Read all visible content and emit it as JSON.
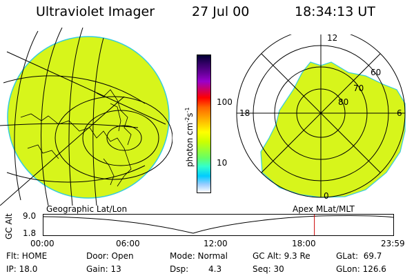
{
  "header": {
    "instrument": "Ultraviolet Imager",
    "date": "27 Jul 00",
    "time": "18:34:13 UT"
  },
  "colorbar": {
    "unit_main": "photon cm",
    "unit_sup1": "-2",
    "unit_s": "s",
    "unit_sup2": "-1",
    "ticks": [
      "100",
      "10"
    ],
    "colors": [
      "#000033",
      "#330066",
      "#660099",
      "#9900cc",
      "#cc0066",
      "#ff0000",
      "#ff6600",
      "#ff9900",
      "#ffcc00",
      "#ffff00",
      "#ccff00",
      "#99ff33",
      "#66ff66",
      "#33ffcc",
      "#00ccff",
      "#99ccff",
      "#ffffff"
    ]
  },
  "left_panel": {
    "caption": "Geographic Lat/Lon"
  },
  "right_panel": {
    "caption": "Apex MLat/MLT",
    "mlt_labels": {
      "top": "12",
      "left": "18",
      "right": "6",
      "bottom": "0"
    },
    "lat_labels": [
      "60",
      "70",
      "80"
    ]
  },
  "timeline": {
    "axis_title": "GC Alt",
    "y_ticks": [
      "9.0",
      "1.8"
    ],
    "x_ticks": [
      "00:00",
      "06:00",
      "12:00",
      "18:00",
      "23:59"
    ],
    "current_fraction": 0.7744
  },
  "status": {
    "flt": "Flt: HOME",
    "door": "Door: Open",
    "mode": "Mode: Normal",
    "gc_alt": "GC Alt: 9.3 Re",
    "glat": "GLat:  69.7",
    "ip": "IP: 18.0",
    "gain": "Gain: 13",
    "dsp_label": "Dsp:",
    "dsp_value": "4.3",
    "seq": "Seq: 30",
    "glon": "GLon: 126.6"
  },
  "colors": {
    "image_fill": "#d7f51b",
    "edge": "#33ccdd",
    "marker": "#cc0000"
  }
}
